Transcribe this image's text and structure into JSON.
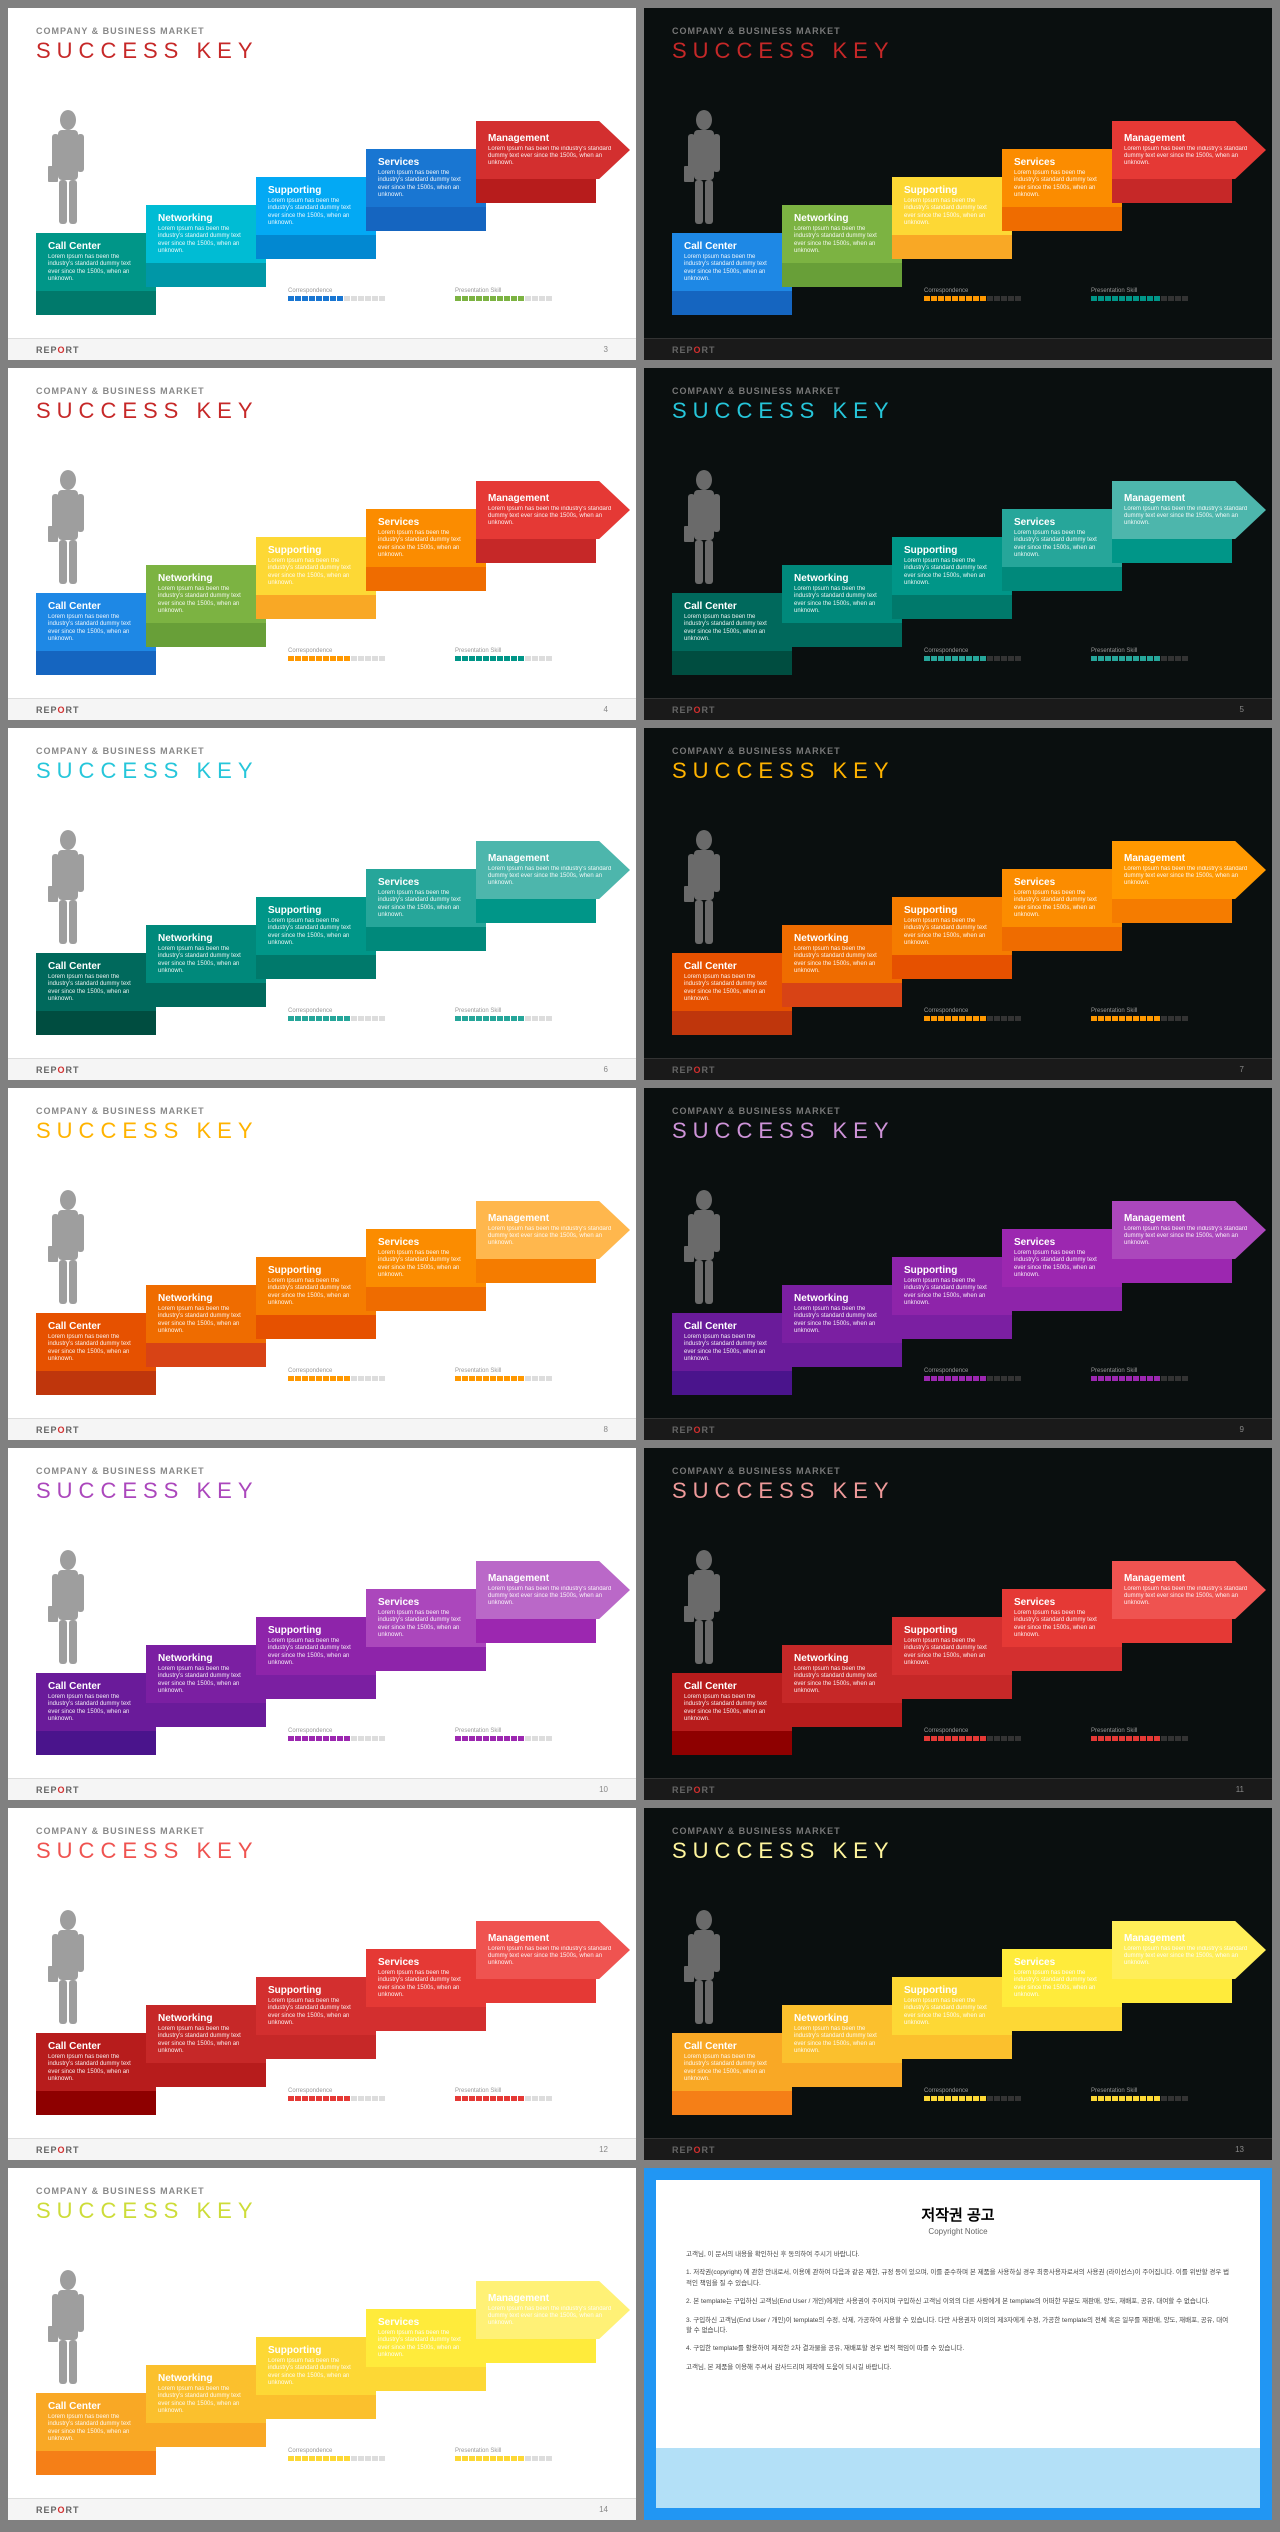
{
  "common": {
    "subtitle": "COMPANY & BUSINESS MARKET",
    "title": "SUCCESS KEY",
    "footer_label": "REPORT",
    "step_desc": "Lorem Ipsum has been the industry's standard dummy text ever since the 1500s, when an unknown.",
    "steps": [
      "Call Center",
      "Networking",
      "Supporting",
      "Services",
      "Management"
    ],
    "bar_labels": [
      "Correspondence",
      "Presentation Skill"
    ],
    "bar_total": 14
  },
  "slides": [
    {
      "bg": "#ffffff",
      "subtitle_color": "#888",
      "title_color": "#c62828",
      "fig_color": "#9e9e9e",
      "bar_filled": [
        8,
        10
      ],
      "bar_colors": [
        "#1976d2",
        "#7cb342"
      ],
      "step_colors": [
        "#009688",
        "#00bcd4",
        "#03a9f4",
        "#1976d2",
        "#d32f2f"
      ],
      "tab_colors": [
        "#00796b",
        "#0097a7",
        "#0288d1",
        "#1565c0",
        "#b71c1c"
      ],
      "num": "3"
    },
    {
      "bg": "#0a0f0f",
      "subtitle_color": "#777",
      "title_color": "#c62828",
      "fig_color": "#6a6a6a",
      "bar_filled": [
        9,
        10
      ],
      "bar_colors": [
        "#ff9800",
        "#009688"
      ],
      "step_colors": [
        "#1e88e5",
        "#7cb342",
        "#fdd835",
        "#fb8c00",
        "#e53935"
      ],
      "tab_colors": [
        "#1565c0",
        "#689f38",
        "#f9a825",
        "#ef6c00",
        "#c62828"
      ],
      "num": ""
    },
    {
      "bg": "#ffffff",
      "subtitle_color": "#888",
      "title_color": "#c62828",
      "fig_color": "#9e9e9e",
      "bar_filled": [
        9,
        10
      ],
      "bar_colors": [
        "#ff9800",
        "#009688"
      ],
      "step_colors": [
        "#1e88e5",
        "#7cb342",
        "#fdd835",
        "#fb8c00",
        "#e53935"
      ],
      "tab_colors": [
        "#1565c0",
        "#689f38",
        "#f9a825",
        "#ef6c00",
        "#c62828"
      ],
      "num": "4"
    },
    {
      "bg": "#0a0f0f",
      "subtitle_color": "#777",
      "title_color": "#26c6da",
      "fig_color": "#6a6a6a",
      "bar_filled": [
        9,
        10
      ],
      "bar_colors": [
        "#26a69a",
        "#26a69a"
      ],
      "step_colors": [
        "#00695c",
        "#00897b",
        "#009688",
        "#26a69a",
        "#4db6ac"
      ],
      "tab_colors": [
        "#004d40",
        "#00695c",
        "#00796b",
        "#00897b",
        "#009688"
      ],
      "num": "5"
    },
    {
      "bg": "#ffffff",
      "subtitle_color": "#888",
      "title_color": "#26c6da",
      "fig_color": "#9e9e9e",
      "bar_filled": [
        9,
        10
      ],
      "bar_colors": [
        "#26a69a",
        "#26a69a"
      ],
      "step_colors": [
        "#00695c",
        "#00897b",
        "#009688",
        "#26a69a",
        "#4db6ac"
      ],
      "tab_colors": [
        "#004d40",
        "#00695c",
        "#00796b",
        "#00897b",
        "#009688"
      ],
      "num": "6"
    },
    {
      "bg": "#0a0f0f",
      "subtitle_color": "#777",
      "title_color": "#ffb300",
      "fig_color": "#6a6a6a",
      "bar_filled": [
        9,
        10
      ],
      "bar_colors": [
        "#ff9800",
        "#ff9800"
      ],
      "step_colors": [
        "#e65100",
        "#ef6c00",
        "#f57c00",
        "#fb8c00",
        "#ff9800"
      ],
      "tab_colors": [
        "#bf360c",
        "#d84315",
        "#e65100",
        "#ef6c00",
        "#f57c00"
      ],
      "num": "7"
    },
    {
      "bg": "#ffffff",
      "subtitle_color": "#888",
      "title_color": "#ffb300",
      "fig_color": "#9e9e9e",
      "bar_filled": [
        9,
        10
      ],
      "bar_colors": [
        "#ff9800",
        "#ff9800"
      ],
      "step_colors": [
        "#e65100",
        "#ef6c00",
        "#f57c00",
        "#fb8c00",
        "#ffb74d"
      ],
      "tab_colors": [
        "#bf360c",
        "#d84315",
        "#e65100",
        "#ef6c00",
        "#f57c00"
      ],
      "num": "8"
    },
    {
      "bg": "#0a0f0f",
      "subtitle_color": "#777",
      "title_color": "#ce93d8",
      "fig_color": "#6a6a6a",
      "bar_filled": [
        9,
        10
      ],
      "bar_colors": [
        "#9c27b0",
        "#9c27b0"
      ],
      "step_colors": [
        "#6a1b9a",
        "#7b1fa2",
        "#8e24aa",
        "#9c27b0",
        "#ab47bc"
      ],
      "tab_colors": [
        "#4a148c",
        "#6a1b9a",
        "#7b1fa2",
        "#8e24aa",
        "#9c27b0"
      ],
      "num": "9"
    },
    {
      "bg": "#ffffff",
      "subtitle_color": "#888",
      "title_color": "#ab47bc",
      "fig_color": "#9e9e9e",
      "bar_filled": [
        9,
        10
      ],
      "bar_colors": [
        "#9c27b0",
        "#9c27b0"
      ],
      "step_colors": [
        "#6a1b9a",
        "#7b1fa2",
        "#8e24aa",
        "#ab47bc",
        "#ba68c8"
      ],
      "tab_colors": [
        "#4a148c",
        "#6a1b9a",
        "#7b1fa2",
        "#8e24aa",
        "#9c27b0"
      ],
      "num": "10"
    },
    {
      "bg": "#0a0f0f",
      "subtitle_color": "#777",
      "title_color": "#ef9a9a",
      "fig_color": "#6a6a6a",
      "bar_filled": [
        9,
        10
      ],
      "bar_colors": [
        "#e53935",
        "#e53935"
      ],
      "step_colors": [
        "#b71c1c",
        "#c62828",
        "#d32f2f",
        "#e53935",
        "#ef5350"
      ],
      "tab_colors": [
        "#8e0000",
        "#b71c1c",
        "#c62828",
        "#d32f2f",
        "#e53935"
      ],
      "num": "11"
    },
    {
      "bg": "#ffffff",
      "subtitle_color": "#888",
      "title_color": "#ef5350",
      "fig_color": "#9e9e9e",
      "bar_filled": [
        9,
        10
      ],
      "bar_colors": [
        "#e53935",
        "#e53935"
      ],
      "step_colors": [
        "#b71c1c",
        "#c62828",
        "#d32f2f",
        "#e53935",
        "#ef5350"
      ],
      "tab_colors": [
        "#8e0000",
        "#b71c1c",
        "#c62828",
        "#d32f2f",
        "#e53935"
      ],
      "num": "12"
    },
    {
      "bg": "#0a0f0f",
      "subtitle_color": "#777",
      "title_color": "#fff59d",
      "fig_color": "#6a6a6a",
      "bar_filled": [
        9,
        10
      ],
      "bar_colors": [
        "#fdd835",
        "#fdd835"
      ],
      "step_colors": [
        "#f9a825",
        "#fbc02d",
        "#fdd835",
        "#ffeb3b",
        "#ffee58"
      ],
      "tab_colors": [
        "#f57f17",
        "#f9a825",
        "#fbc02d",
        "#fdd835",
        "#ffeb3b"
      ],
      "num": "13"
    },
    {
      "bg": "#ffffff",
      "subtitle_color": "#888",
      "title_color": "#cddc39",
      "fig_color": "#9e9e9e",
      "bar_filled": [
        9,
        10
      ],
      "bar_colors": [
        "#fdd835",
        "#fdd835"
      ],
      "step_colors": [
        "#f9a825",
        "#fbc02d",
        "#fdd835",
        "#ffeb3b",
        "#fff176"
      ],
      "tab_colors": [
        "#f57f17",
        "#f9a825",
        "#fbc02d",
        "#fdd835",
        "#ffeb3b"
      ],
      "num": "14"
    }
  ],
  "notice": {
    "title": "저작권 공고",
    "subtitle": "Copyright Notice",
    "paragraphs": [
      "고객님, 이 문서의 내용을 확인하신 후 동의하여 주시기 바랍니다.",
      "1. 저작권(copyright) 에 관한 안내로서, 이용에 관하여 다음과 같은 제한, 규정 등이 있으며, 이를 준수하며 본 제품을 사용하실 경우 최종사용자로서의 사용권 (라이선스)이 주어집니다. 이를 위반할 경우 법적인 책임을 질 수 있습니다.",
      "2. 본 template는 구입하신 고객님(End User / 개인)에게만 사용권이 주어지며 구입하신 고객님 이외의 다른 사람에게 본 template의 어떠한 부분도 재판매, 양도, 재배포, 공유, 대여할 수 없습니다.",
      "3. 구입하신 고객님(End User / 개인)이 template의 수정, 삭제, 가공하여 사용할 수 있습니다. 다만 사용권자 이외의 제3자에게 수정, 가공한 template의 전체 혹은 일부를 재판매, 양도, 재배포, 공유, 대여할 수 없습니다.",
      "4. 구입한 template를 활용하여 제작한 2차 결과물을 공유, 재배포할 경우 법적 책임이 따를 수 있습니다.",
      "고객님, 본 제품을 이용해 주셔서 감사드리며 제작에 도움이 되시길 바랍니다."
    ]
  }
}
